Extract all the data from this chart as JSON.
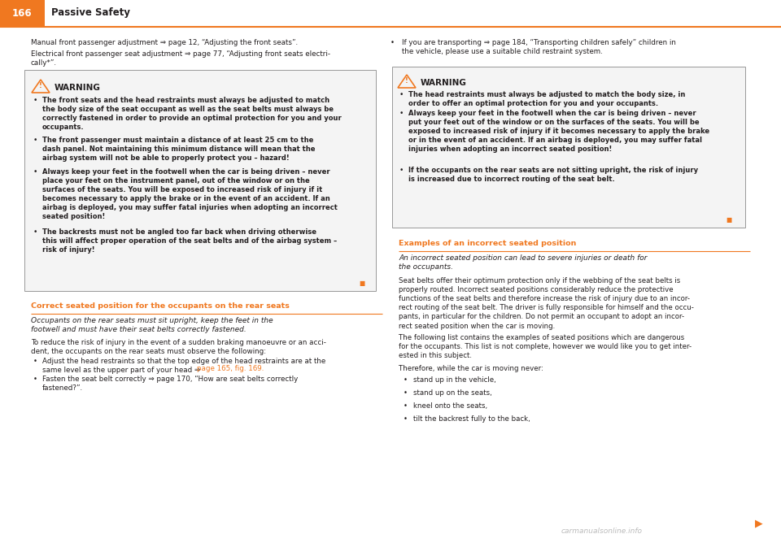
{
  "page_number": "166",
  "chapter_title": "Passive Safety",
  "header_orange": "#F07820",
  "bg_color": "#FFFFFF",
  "text_color": "#231F20",
  "orange_color": "#F07820",
  "watermark_text": "carmanualsonline.info",
  "watermark_color": "#BBBBBB",
  "left_intro1": "Manual front passenger adjustment ⇒ page 12, “Adjusting the front seats”.",
  "left_intro2": "Electrical front passenger seat adjustment ⇒ page 77, “Adjusting front seats electri-\ncally*”.",
  "left_warning_title": "WARNING",
  "left_warning_b1": "The front seats and the head restraints must always be adjusted to match\nthe body size of the seat occupant as well as the seat belts must always be\ncorrectly fastened in order to provide an optimal protection for you and your\noccupants.",
  "left_warning_b2": "The front passenger must maintain a distance of at least 25 cm to the\ndash panel. Not maintaining this minimum distance will mean that the\nairbag system will not be able to properly protect you – hazard!",
  "left_warning_b3": "Always keep your feet in the footwell when the car is being driven – never\nplace your feet on the instrument panel, out of the window or on the\nsurfaces of the seats. You will be exposed to increased risk of injury if it\nbecomes necessary to apply the brake or in the event of an accident. If an\nairbag is deployed, you may suffer fatal injuries when adopting an incorrect\nseated position!",
  "left_warning_b4": "The backrests must not be angled too far back when driving otherwise\nthis will affect proper operation of the seat belts and of the airbag system –\nrisk of injury!",
  "left_section_title": "Correct seated position for the occupants on the rear seats",
  "left_italic": "Occupants on the rear seats must sit upright, keep the feet in the\nfootwell and must have their seat belts correctly fastened.",
  "left_body": "To reduce the risk of injury in the event of a sudden braking manoeuvre or an acci-\ndent, the occupants on the rear seats must observe the following:",
  "left_b1_normal": "Adjust the head restraints so that the top edge of the head restraints are at the\nsame level as the upper part of your head ⇒ ",
  "left_b1_orange": "page 165, fig. 169.",
  "left_b2": "Fasten the seat belt correctly ⇒ page 170, “How are seat belts correctly\nfastened?”.",
  "right_intro": "If you are transporting ⇒ page 184, “Transporting children safely” children in\nthe vehicle, please use a suitable child restraint system.",
  "right_warning_title": "WARNING",
  "right_warning_b1": "The head restraints must always be adjusted to match the body size, in\norder to offer an optimal protection for you and your occupants.",
  "right_warning_b2": "Always keep your feet in the footwell when the car is being driven – never\nput your feet out of the window or on the surfaces of the seats. You will be\nexposed to increased risk of injury if it becomes necessary to apply the brake\nor in the event of an accident. If an airbag is deployed, you may suffer fatal\ninjuries when adopting an incorrect seated position!",
  "right_warning_b3": "If the occupants on the rear seats are not sitting upright, the risk of injury\nis increased due to incorrect routing of the seat belt.",
  "right_section_title": "Examples of an incorrect seated position",
  "right_italic": "An incorrect seated position can lead to severe injuries or death for\nthe occupants.",
  "right_body1": "Seat belts offer their optimum protection only if the webbing of the seat belts is\nproperly routed. Incorrect seated positions considerably reduce the protective\nfunctions of the seat belts and therefore increase the risk of injury due to an incor-\nrect routing of the seat belt. The driver is fully responsible for himself and the occu-\npants, in particular for the children. Do not permit an occupant to adopt an incor-\nrect seated position when the car is moving.",
  "right_body2": "The following list contains the examples of seated positions which are dangerous\nfor the occupants. This list is not complete, however we would like you to get inter-\nested in this subject.",
  "right_body3": "Therefore, while the car is moving never:",
  "right_bullets": [
    "stand up in the vehicle,",
    "stand up on the seats,",
    "kneel onto the seats,",
    "tilt the backrest fully to the back,"
  ]
}
